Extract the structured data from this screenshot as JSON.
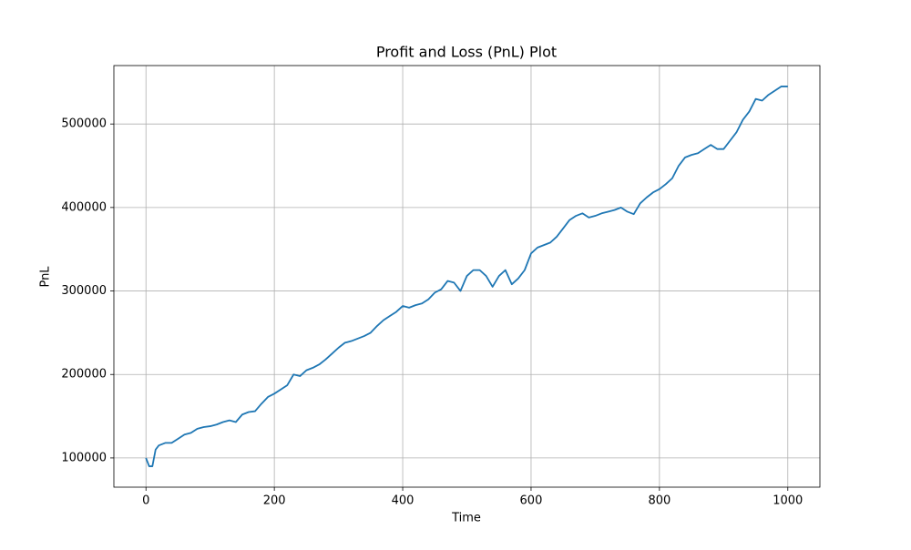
{
  "chart_data": {
    "type": "line",
    "title": "Profit and Loss (PnL) Plot",
    "x_label": "Time",
    "y_label": "PnL",
    "x": [
      0,
      5,
      10,
      15,
      20,
      30,
      40,
      50,
      60,
      70,
      80,
      90,
      100,
      110,
      120,
      130,
      140,
      150,
      160,
      170,
      180,
      190,
      200,
      210,
      220,
      230,
      240,
      250,
      260,
      270,
      280,
      290,
      300,
      310,
      320,
      330,
      340,
      350,
      360,
      370,
      380,
      390,
      400,
      410,
      420,
      430,
      440,
      450,
      460,
      470,
      480,
      490,
      500,
      510,
      520,
      530,
      540,
      550,
      560,
      570,
      580,
      590,
      600,
      610,
      620,
      630,
      640,
      650,
      660,
      670,
      680,
      690,
      700,
      710,
      720,
      730,
      740,
      750,
      760,
      770,
      780,
      790,
      800,
      810,
      820,
      830,
      840,
      850,
      860,
      870,
      880,
      890,
      900,
      910,
      920,
      930,
      940,
      950,
      960,
      970,
      980,
      990,
      1000
    ],
    "series": [
      {
        "name": "PnL",
        "color": "#1f77b4",
        "values": [
          100000,
          90000,
          90000,
          110000,
          115000,
          118000,
          118000,
          123000,
          128000,
          130000,
          135000,
          137000,
          138000,
          140000,
          143000,
          145000,
          143000,
          152000,
          155000,
          156000,
          165000,
          173000,
          177000,
          182000,
          187000,
          200000,
          198000,
          205000,
          208000,
          212000,
          218000,
          225000,
          232000,
          238000,
          240000,
          243000,
          246000,
          250000,
          258000,
          265000,
          270000,
          275000,
          282000,
          280000,
          283000,
          285000,
          290000,
          298000,
          302000,
          312000,
          310000,
          300000,
          318000,
          325000,
          325000,
          318000,
          305000,
          318000,
          325000,
          308000,
          315000,
          325000,
          345000,
          352000,
          355000,
          358000,
          365000,
          375000,
          385000,
          390000,
          393000,
          388000,
          390000,
          393000,
          395000,
          397000,
          400000,
          395000,
          392000,
          405000,
          412000,
          418000,
          422000,
          428000,
          435000,
          450000,
          460000,
          463000,
          465000,
          470000,
          475000,
          470000,
          470000,
          480000,
          490000,
          505000,
          515000,
          530000,
          528000,
          535000,
          540000,
          545000,
          545000
        ]
      }
    ],
    "xlim": [
      -50,
      1050
    ],
    "ylim": [
      65000,
      570000
    ],
    "xticks": [
      0,
      200,
      400,
      600,
      800,
      1000
    ],
    "yticks": [
      100000,
      200000,
      300000,
      400000,
      500000
    ],
    "grid": true
  }
}
